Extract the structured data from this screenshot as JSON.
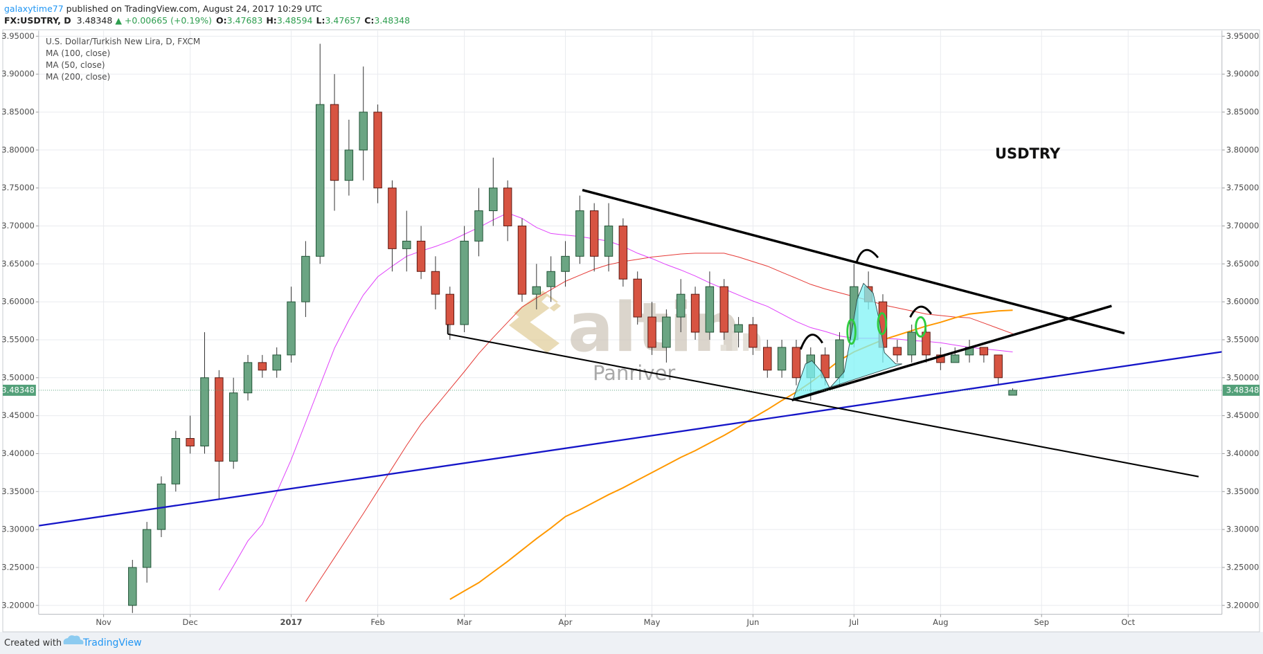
{
  "header": {
    "author": "galaxytime77",
    "published": "published on TradingView.com, August 24, 2017 10:29 UTC",
    "symbol": "FX:USDTRY, D",
    "price": "3.48348",
    "change": "▲ +0.00665 (+0.19%)",
    "ohlc": [
      {
        "key": "O:",
        "value": "3.47683"
      },
      {
        "key": "H:",
        "value": "3.48594"
      },
      {
        "key": "L:",
        "value": "3.47657"
      },
      {
        "key": "C:",
        "value": "3.48348"
      }
    ]
  },
  "footer": {
    "created": "Created with",
    "brand": "TradingView"
  },
  "watermark": {
    "brand": "altin",
    "suffix": ".in",
    "sub": "Panriver"
  },
  "chart_data": {
    "type": "candlestick",
    "subtitle": "U.S. Dollar/Turkish New Lira, D, FXCM",
    "annotations": [
      "USDTRY"
    ],
    "categories": [
      null,
      null,
      null,
      null,
      "Nov",
      null,
      null,
      null,
      null,
      null,
      "Dec",
      null,
      null,
      null,
      null,
      null,
      null,
      "2017",
      null,
      null,
      null,
      null,
      null,
      "Feb",
      null,
      null,
      null,
      null,
      null,
      "Mar",
      null,
      null,
      null,
      null,
      null,
      null,
      "Apr",
      null,
      null,
      null,
      null,
      null,
      "May",
      null,
      null,
      null,
      null,
      null,
      null,
      "Jun",
      null,
      null,
      null,
      null,
      null,
      null,
      "Jul",
      null,
      null,
      null,
      null,
      null,
      "Aug",
      null,
      null,
      null,
      null,
      null,
      null,
      "Sep",
      null,
      null,
      null,
      null,
      null,
      "Oct",
      null,
      null,
      null,
      null,
      null,
      null
    ],
    "open": [
      null,
      null,
      null,
      null,
      null,
      null,
      3.2,
      3.25,
      3.3,
      3.36,
      3.42,
      3.41,
      3.5,
      3.39,
      3.48,
      3.52,
      3.51,
      3.53,
      3.6,
      3.66,
      3.86,
      3.76,
      3.8,
      3.85,
      3.75,
      3.67,
      3.68,
      3.64,
      3.61,
      3.57,
      3.68,
      3.72,
      3.75,
      3.7,
      3.61,
      3.62,
      3.64,
      3.66,
      3.72,
      3.66,
      3.7,
      3.63,
      3.58,
      3.54,
      3.58,
      3.61,
      3.56,
      3.62,
      3.56,
      3.57,
      3.54,
      3.51,
      3.54,
      3.5,
      3.53,
      3.5,
      3.55,
      3.62,
      3.6,
      3.54,
      3.53,
      3.56,
      3.53,
      3.52,
      3.53,
      3.54,
      3.53,
      3.477,
      null,
      null,
      null,
      null,
      null,
      null,
      null,
      null,
      null,
      null,
      null,
      null,
      null,
      null
    ],
    "high": [
      null,
      null,
      null,
      null,
      null,
      null,
      3.26,
      3.31,
      3.37,
      3.43,
      3.45,
      3.56,
      3.51,
      3.5,
      3.53,
      3.53,
      3.54,
      3.62,
      3.68,
      3.94,
      3.9,
      3.84,
      3.91,
      3.86,
      3.76,
      3.72,
      3.7,
      3.66,
      3.62,
      3.7,
      3.75,
      3.79,
      3.76,
      3.71,
      3.65,
      3.66,
      3.68,
      3.74,
      3.73,
      3.73,
      3.71,
      3.64,
      3.6,
      3.59,
      3.63,
      3.62,
      3.64,
      3.63,
      3.58,
      3.58,
      3.55,
      3.55,
      3.55,
      3.54,
      3.54,
      3.56,
      3.65,
      3.64,
      3.61,
      3.55,
      3.57,
      3.57,
      3.54,
      3.54,
      3.55,
      3.54,
      3.53,
      3.486,
      null,
      null,
      null,
      null,
      null,
      null,
      null,
      null,
      null,
      null,
      null,
      null,
      null,
      null
    ],
    "low": [
      null,
      null,
      null,
      null,
      null,
      null,
      3.19,
      3.23,
      3.29,
      3.35,
      3.4,
      3.4,
      3.34,
      3.38,
      3.47,
      3.5,
      3.5,
      3.52,
      3.58,
      3.65,
      3.72,
      3.74,
      3.76,
      3.73,
      3.64,
      3.64,
      3.63,
      3.59,
      3.55,
      3.56,
      3.66,
      3.7,
      3.68,
      3.6,
      3.59,
      3.6,
      3.62,
      3.65,
      3.64,
      3.64,
      3.62,
      3.57,
      3.53,
      3.52,
      3.56,
      3.55,
      3.55,
      3.55,
      3.54,
      3.53,
      3.5,
      3.5,
      3.49,
      3.47,
      3.49,
      3.49,
      3.54,
      3.59,
      3.52,
      3.52,
      3.52,
      3.52,
      3.51,
      3.52,
      3.52,
      3.52,
      3.49,
      3.477,
      null,
      null,
      null,
      null,
      null,
      null,
      null,
      null,
      null,
      null,
      null,
      null,
      null,
      null
    ],
    "close": [
      null,
      null,
      null,
      null,
      null,
      null,
      3.25,
      3.3,
      3.36,
      3.42,
      3.41,
      3.5,
      3.39,
      3.48,
      3.52,
      3.51,
      3.53,
      3.6,
      3.66,
      3.86,
      3.76,
      3.8,
      3.85,
      3.75,
      3.67,
      3.68,
      3.64,
      3.61,
      3.57,
      3.68,
      3.72,
      3.75,
      3.7,
      3.61,
      3.62,
      3.64,
      3.66,
      3.72,
      3.66,
      3.7,
      3.63,
      3.58,
      3.54,
      3.58,
      3.61,
      3.56,
      3.62,
      3.56,
      3.57,
      3.54,
      3.51,
      3.54,
      3.5,
      3.53,
      3.5,
      3.55,
      3.62,
      3.6,
      3.54,
      3.53,
      3.56,
      3.53,
      3.52,
      3.53,
      3.54,
      3.53,
      3.5,
      3.48348,
      null,
      null,
      null,
      null,
      null,
      null,
      null,
      null,
      null,
      null,
      null,
      null,
      null,
      null
    ],
    "up_color": "#6ba583",
    "down_color": "#d75442",
    "series": [
      {
        "name": "MA (100, close)",
        "color": "#e53935",
        "line_width": 1,
        "values": [
          null,
          null,
          null,
          null,
          null,
          null,
          null,
          null,
          null,
          null,
          null,
          null,
          null,
          null,
          null,
          null,
          null,
          null,
          3.205,
          3.234,
          3.263,
          3.292,
          3.321,
          3.351,
          3.381,
          3.411,
          3.439,
          3.462,
          3.485,
          3.508,
          3.532,
          3.553,
          3.573,
          3.593,
          3.605,
          3.616,
          3.627,
          3.635,
          3.643,
          3.649,
          3.653,
          3.656,
          3.659,
          3.661,
          3.663,
          3.664,
          3.664,
          3.664,
          3.659,
          3.653,
          3.647,
          3.639,
          3.631,
          3.623,
          3.617,
          3.612,
          3.607,
          3.602,
          3.596,
          3.592,
          3.588,
          3.584,
          3.582,
          3.58,
          3.579,
          3.572,
          3.565,
          3.558,
          null,
          null,
          null,
          null,
          null,
          null,
          null,
          null,
          null,
          null,
          null,
          null,
          null,
          null
        ]
      },
      {
        "name": "MA (50, close)",
        "color": "#e040fb",
        "line_width": 1,
        "values": [
          null,
          null,
          null,
          null,
          null,
          null,
          null,
          null,
          null,
          null,
          null,
          null,
          3.22,
          3.252,
          3.285,
          3.307,
          3.349,
          3.392,
          3.441,
          3.49,
          3.539,
          3.576,
          3.609,
          3.633,
          3.647,
          3.66,
          3.667,
          3.673,
          3.68,
          3.689,
          3.698,
          3.708,
          3.717,
          3.71,
          3.698,
          3.69,
          3.688,
          3.686,
          3.683,
          3.68,
          3.673,
          3.664,
          3.657,
          3.649,
          3.642,
          3.634,
          3.625,
          3.617,
          3.609,
          3.601,
          3.594,
          3.584,
          3.574,
          3.566,
          3.561,
          3.555,
          3.552,
          3.552,
          3.552,
          3.551,
          3.549,
          3.548,
          3.546,
          3.543,
          3.54,
          3.538,
          3.536,
          3.534,
          null,
          null,
          null,
          null,
          null,
          null,
          null,
          null,
          null,
          null,
          null,
          null,
          null,
          null
        ]
      },
      {
        "name": "MA (200, close)",
        "color": "#ff9800",
        "line_width": 2,
        "values": [
          null,
          null,
          null,
          null,
          null,
          null,
          null,
          null,
          null,
          null,
          null,
          null,
          null,
          null,
          null,
          null,
          null,
          null,
          null,
          null,
          null,
          null,
          null,
          null,
          null,
          null,
          null,
          null,
          3.208,
          3.219,
          3.23,
          3.244,
          3.258,
          3.273,
          3.288,
          3.302,
          3.317,
          3.326,
          3.336,
          3.346,
          3.355,
          3.365,
          3.375,
          3.385,
          3.395,
          3.404,
          3.414,
          3.424,
          3.435,
          3.447,
          3.458,
          3.47,
          3.481,
          3.494,
          3.508,
          3.523,
          3.534,
          3.542,
          3.55,
          3.556,
          3.562,
          3.568,
          3.573,
          3.579,
          3.584,
          3.586,
          3.588,
          3.589,
          null,
          null,
          null,
          null,
          null,
          null,
          null,
          null,
          null,
          null,
          null,
          null,
          null,
          null
        ]
      }
    ],
    "last_price": 3.48348,
    "last_price_color": "#53a079",
    "ylim": [
      3.1883,
      3.9574
    ],
    "yticks": [
      {
        "value": 3.2,
        "label": "3.20000"
      },
      {
        "value": 3.25,
        "label": "3.25000"
      },
      {
        "value": 3.3,
        "label": "3.30000"
      },
      {
        "value": 3.35,
        "label": "3.35000"
      },
      {
        "value": 3.4,
        "label": "3.40000"
      },
      {
        "value": 3.45,
        "label": "3.45000"
      },
      {
        "value": 3.5,
        "label": "3.50000"
      },
      {
        "value": 3.55,
        "label": "3.55000"
      },
      {
        "value": 3.6,
        "label": "3.60000"
      },
      {
        "value": 3.65,
        "label": "3.65000"
      },
      {
        "value": 3.7,
        "label": "3.70000"
      },
      {
        "value": 3.75,
        "label": "3.75000"
      },
      {
        "value": 3.8,
        "label": "3.80000"
      },
      {
        "value": 3.85,
        "label": "3.85000"
      },
      {
        "value": 3.9,
        "label": "3.90000"
      },
      {
        "value": 3.95,
        "label": "3.95000"
      }
    ],
    "grid": true
  }
}
